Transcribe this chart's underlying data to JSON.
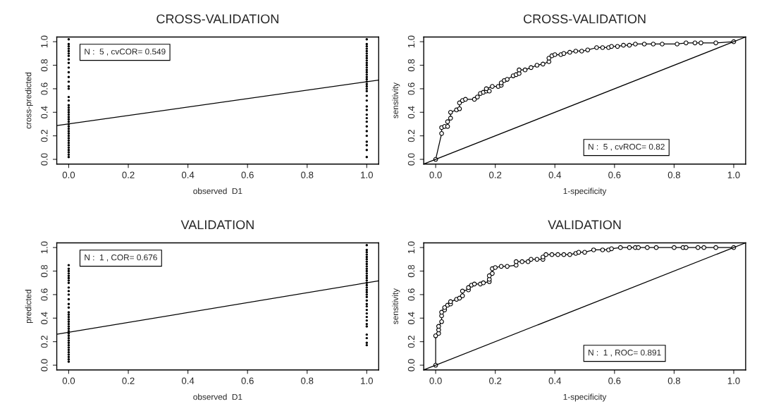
{
  "chart_data": [
    {
      "type": "scatter",
      "title": "CROSS-VALIDATION",
      "xlabel": "observed  D1",
      "ylabel": "cross-predicted",
      "annotations": [
        "N :  5 , cvCOR= 0.549"
      ],
      "xlim": [
        -0.04,
        1.04
      ],
      "ylim": [
        -0.04,
        1.04
      ],
      "xticks": [
        {
          "value": 0,
          "label": "0.0"
        },
        {
          "value": 0.2,
          "label": "0.2"
        },
        {
          "value": 0.4,
          "label": "0.4"
        },
        {
          "value": 0.6,
          "label": "0.6"
        },
        {
          "value": 0.8,
          "label": "0.8"
        },
        {
          "value": 1,
          "label": "1.0"
        }
      ],
      "yticks": [
        {
          "value": 0,
          "label": "0.0"
        },
        {
          "value": 0.2,
          "label": "0.2"
        },
        {
          "value": 0.4,
          "label": "0.4"
        },
        {
          "value": 0.6,
          "label": "0.6"
        },
        {
          "value": 0.8,
          "label": "0.8"
        },
        {
          "value": 1,
          "label": "1.0"
        }
      ],
      "grid": false,
      "marker": "circle",
      "series": [
        {
          "type": "scatter",
          "color": "#000000",
          "x": [
            0,
            0,
            0,
            0,
            0,
            0,
            0,
            0,
            0,
            0,
            0,
            0,
            0,
            0,
            0,
            0,
            0,
            0,
            0,
            0,
            0,
            0,
            0,
            0,
            0,
            0,
            0,
            0,
            0,
            0,
            0,
            0,
            0,
            0,
            0,
            0,
            0,
            0,
            0,
            0
          ],
          "values": [
            0.02,
            0.04,
            0.06,
            0.08,
            0.1,
            0.12,
            0.14,
            0.16,
            0.18,
            0.2,
            0.22,
            0.24,
            0.26,
            0.28,
            0.3,
            0.32,
            0.34,
            0.36,
            0.38,
            0.4,
            0.42,
            0.44,
            0.46,
            0.5,
            0.53,
            0.6,
            0.62,
            0.66,
            0.7,
            0.74,
            0.78,
            0.82,
            0.85,
            0.88,
            0.9,
            0.92,
            0.94,
            0.96,
            0.98,
            1.02
          ]
        },
        {
          "type": "scatter",
          "color": "#000000",
          "x": [
            1,
            1,
            1,
            1,
            1,
            1,
            1,
            1,
            1,
            1,
            1,
            1,
            1,
            1,
            1,
            1,
            1,
            1,
            1,
            1,
            1,
            1,
            1,
            1,
            1,
            1,
            1,
            1,
            1,
            1,
            1,
            1,
            1,
            1,
            1,
            1
          ],
          "values": [
            0.02,
            0.08,
            0.12,
            0.15,
            0.2,
            0.24,
            0.28,
            0.32,
            0.35,
            0.38,
            0.42,
            0.45,
            0.5,
            0.54,
            0.58,
            0.6,
            0.62,
            0.64,
            0.66,
            0.68,
            0.7,
            0.72,
            0.74,
            0.76,
            0.78,
            0.8,
            0.82,
            0.84,
            0.86,
            0.88,
            0.9,
            0.92,
            0.94,
            0.96,
            0.98,
            1.02
          ]
        },
        {
          "type": "line",
          "color": "#000000",
          "marker": "none",
          "line_style": "solid",
          "x": [
            -0.04,
            1.04
          ],
          "values": [
            0.287,
            0.674
          ]
        }
      ]
    },
    {
      "type": "line",
      "title": "CROSS-VALIDATION",
      "xlabel": "1-specificity",
      "ylabel": "sensitivity",
      "annotations": [
        "N :  5 , cvROC= 0.82"
      ],
      "xlim": [
        -0.04,
        1.04
      ],
      "ylim": [
        -0.04,
        1.04
      ],
      "xticks": [
        {
          "value": 0,
          "label": "0.0"
        },
        {
          "value": 0.2,
          "label": "0.2"
        },
        {
          "value": 0.4,
          "label": "0.4"
        },
        {
          "value": 0.6,
          "label": "0.6"
        },
        {
          "value": 0.8,
          "label": "0.8"
        },
        {
          "value": 1,
          "label": "1.0"
        }
      ],
      "yticks": [
        {
          "value": 0,
          "label": "0.0"
        },
        {
          "value": 0.2,
          "label": "0.2"
        },
        {
          "value": 0.4,
          "label": "0.4"
        },
        {
          "value": 0.6,
          "label": "0.6"
        },
        {
          "value": 0.8,
          "label": "0.8"
        },
        {
          "value": 1,
          "label": "1.0"
        }
      ],
      "grid": false,
      "marker": "circle",
      "series": [
        {
          "type": "line",
          "color": "#000000",
          "marker": "circle",
          "line_style": "solid",
          "x": [
            0,
            0.02,
            0.02,
            0.03,
            0.04,
            0.04,
            0.05,
            0.05,
            0.07,
            0.08,
            0.08,
            0.09,
            0.1,
            0.13,
            0.14,
            0.15,
            0.16,
            0.17,
            0.18,
            0.17,
            0.19,
            0.21,
            0.22,
            0.22,
            0.23,
            0.24,
            0.26,
            0.27,
            0.28,
            0.28,
            0.3,
            0.32,
            0.34,
            0.36,
            0.38,
            0.38,
            0.39,
            0.4,
            0.42,
            0.43,
            0.45,
            0.47,
            0.49,
            0.51,
            0.54,
            0.56,
            0.58,
            0.59,
            0.61,
            0.63,
            0.65,
            0.67,
            0.7,
            0.73,
            0.76,
            0.81,
            0.84,
            0.87,
            0.89,
            0.94,
            1.0
          ],
          "values": [
            0,
            0.22,
            0.27,
            0.28,
            0.28,
            0.32,
            0.35,
            0.4,
            0.42,
            0.43,
            0.48,
            0.5,
            0.51,
            0.51,
            0.53,
            0.56,
            0.57,
            0.58,
            0.58,
            0.6,
            0.62,
            0.62,
            0.63,
            0.65,
            0.67,
            0.68,
            0.71,
            0.72,
            0.73,
            0.76,
            0.76,
            0.78,
            0.8,
            0.81,
            0.83,
            0.86,
            0.88,
            0.89,
            0.89,
            0.9,
            0.91,
            0.92,
            0.92,
            0.93,
            0.95,
            0.95,
            0.95,
            0.96,
            0.96,
            0.97,
            0.97,
            0.98,
            0.98,
            0.98,
            0.98,
            0.98,
            0.99,
            0.99,
            0.99,
            0.99,
            1.0
          ]
        },
        {
          "type": "line",
          "color": "#000000",
          "marker": "none",
          "line_style": "solid",
          "x": [
            -0.04,
            1.04
          ],
          "values": [
            -0.04,
            1.04
          ]
        }
      ]
    },
    {
      "type": "scatter",
      "title": "VALIDATION",
      "xlabel": "observed  D1",
      "ylabel": "predicted",
      "annotations": [
        "N :  1 , COR= 0.676"
      ],
      "xlim": [
        -0.04,
        1.04
      ],
      "ylim": [
        -0.04,
        1.04
      ],
      "xticks": [
        {
          "value": 0,
          "label": "0.0"
        },
        {
          "value": 0.2,
          "label": "0.2"
        },
        {
          "value": 0.4,
          "label": "0.4"
        },
        {
          "value": 0.6,
          "label": "0.6"
        },
        {
          "value": 0.8,
          "label": "0.8"
        },
        {
          "value": 1,
          "label": "1.0"
        }
      ],
      "yticks": [
        {
          "value": 0,
          "label": "0.0"
        },
        {
          "value": 0.2,
          "label": "0.2"
        },
        {
          "value": 0.4,
          "label": "0.4"
        },
        {
          "value": 0.6,
          "label": "0.6"
        },
        {
          "value": 0.8,
          "label": "0.8"
        },
        {
          "value": 1,
          "label": "1.0"
        }
      ],
      "grid": false,
      "marker": "circle",
      "series": [
        {
          "type": "scatter",
          "color": "#000000",
          "x": [
            0,
            0,
            0,
            0,
            0,
            0,
            0,
            0,
            0,
            0,
            0,
            0,
            0,
            0,
            0,
            0,
            0,
            0,
            0,
            0,
            0,
            0,
            0,
            0,
            0,
            0,
            0,
            0,
            0,
            0,
            0,
            0,
            0,
            0,
            0,
            0
          ],
          "values": [
            0.03,
            0.05,
            0.07,
            0.09,
            0.11,
            0.13,
            0.15,
            0.17,
            0.19,
            0.21,
            0.23,
            0.25,
            0.27,
            0.29,
            0.31,
            0.33,
            0.35,
            0.37,
            0.39,
            0.41,
            0.43,
            0.45,
            0.49,
            0.52,
            0.56,
            0.6,
            0.63,
            0.66,
            0.7,
            0.72,
            0.74,
            0.76,
            0.78,
            0.8,
            0.82,
            0.85
          ]
        },
        {
          "type": "scatter",
          "color": "#000000",
          "x": [
            1,
            1,
            1,
            1,
            1,
            1,
            1,
            1,
            1,
            1,
            1,
            1,
            1,
            1,
            1,
            1,
            1,
            1,
            1,
            1,
            1,
            1,
            1,
            1,
            1,
            1,
            1,
            1,
            1,
            1,
            1,
            1,
            1,
            1,
            1
          ],
          "values": [
            0.17,
            0.19,
            0.23,
            0.26,
            0.33,
            0.35,
            0.38,
            0.41,
            0.44,
            0.47,
            0.5,
            0.52,
            0.55,
            0.58,
            0.6,
            0.62,
            0.64,
            0.66,
            0.68,
            0.7,
            0.72,
            0.74,
            0.76,
            0.78,
            0.8,
            0.82,
            0.84,
            0.86,
            0.88,
            0.9,
            0.92,
            0.94,
            0.96,
            0.98,
            1.02
          ]
        },
        {
          "type": "line",
          "color": "#000000",
          "marker": "none",
          "line_style": "solid",
          "x": [
            -0.04,
            1.04
          ],
          "values": [
            0.263,
            0.717
          ]
        }
      ]
    },
    {
      "type": "line",
      "title": "VALIDATION",
      "xlabel": "1-specificity",
      "ylabel": "sensitivity",
      "annotations": [
        "N :  1 , ROC= 0.891"
      ],
      "xlim": [
        -0.04,
        1.04
      ],
      "ylim": [
        -0.04,
        1.04
      ],
      "xticks": [
        {
          "value": 0,
          "label": "0.0"
        },
        {
          "value": 0.2,
          "label": "0.2"
        },
        {
          "value": 0.4,
          "label": "0.4"
        },
        {
          "value": 0.6,
          "label": "0.6"
        },
        {
          "value": 0.8,
          "label": "0.8"
        },
        {
          "value": 1,
          "label": "1.0"
        }
      ],
      "yticks": [
        {
          "value": 0,
          "label": "0.0"
        },
        {
          "value": 0.2,
          "label": "0.2"
        },
        {
          "value": 0.4,
          "label": "0.4"
        },
        {
          "value": 0.6,
          "label": "0.6"
        },
        {
          "value": 0.8,
          "label": "0.8"
        },
        {
          "value": 1,
          "label": "1.0"
        }
      ],
      "grid": false,
      "marker": "circle",
      "series": [
        {
          "type": "line",
          "color": "#000000",
          "marker": "circle",
          "line_style": "solid",
          "x": [
            0,
            0,
            0.01,
            0.01,
            0.01,
            0.02,
            0.02,
            0.02,
            0.03,
            0.03,
            0.04,
            0.05,
            0.05,
            0.07,
            0.08,
            0.09,
            0.09,
            0.11,
            0.11,
            0.12,
            0.13,
            0.15,
            0.16,
            0.18,
            0.18,
            0.18,
            0.19,
            0.19,
            0.2,
            0.22,
            0.24,
            0.27,
            0.27,
            0.29,
            0.31,
            0.32,
            0.34,
            0.36,
            0.36,
            0.37,
            0.39,
            0.41,
            0.43,
            0.45,
            0.47,
            0.48,
            0.5,
            0.53,
            0.56,
            0.58,
            0.59,
            0.62,
            0.65,
            0.67,
            0.68,
            0.71,
            0.74,
            0.8,
            0.83,
            0.84,
            0.88,
            0.9,
            0.94,
            1.0
          ],
          "values": [
            0,
            0.25,
            0.27,
            0.3,
            0.33,
            0.37,
            0.42,
            0.45,
            0.47,
            0.49,
            0.51,
            0.52,
            0.54,
            0.56,
            0.57,
            0.59,
            0.63,
            0.64,
            0.66,
            0.68,
            0.69,
            0.69,
            0.7,
            0.71,
            0.73,
            0.76,
            0.78,
            0.82,
            0.83,
            0.84,
            0.84,
            0.85,
            0.88,
            0.88,
            0.88,
            0.9,
            0.9,
            0.9,
            0.92,
            0.94,
            0.94,
            0.94,
            0.94,
            0.94,
            0.95,
            0.96,
            0.96,
            0.98,
            0.98,
            0.98,
            0.99,
            1.0,
            1.0,
            1.0,
            1.0,
            1.0,
            1.0,
            1.0,
            1.0,
            1.0,
            1.0,
            1.0,
            1.0,
            1.0
          ]
        },
        {
          "type": "line",
          "color": "#000000",
          "marker": "none",
          "line_style": "solid",
          "x": [
            -0.04,
            1.04
          ],
          "values": [
            -0.04,
            1.04
          ]
        }
      ]
    }
  ]
}
